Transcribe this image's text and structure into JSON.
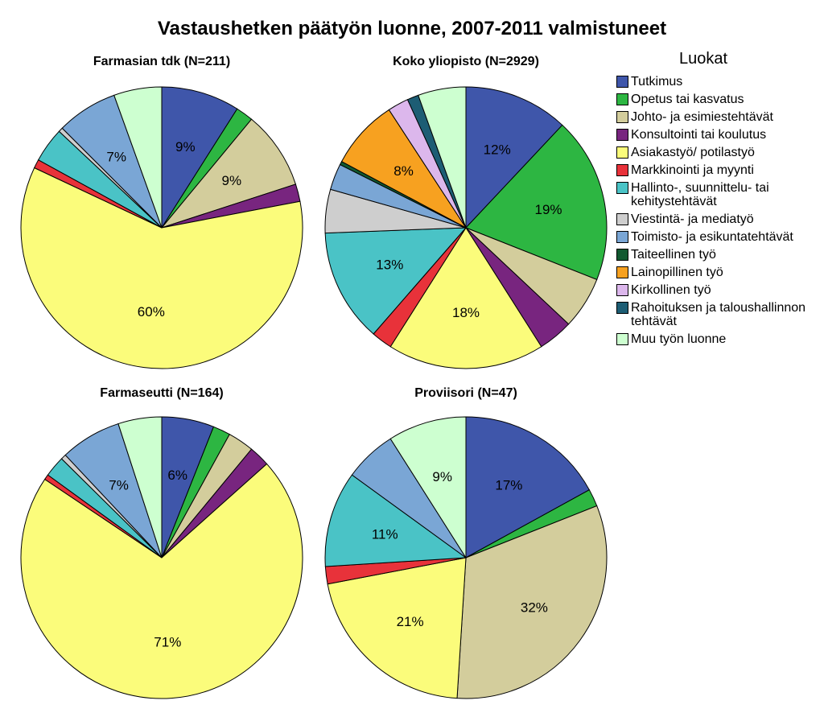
{
  "title": "Vastaushetken päätyön luonne, 2007-2011 valmistuneet",
  "legend_title": "Luokat",
  "categories": [
    {
      "label": "Tutkimus",
      "color": "#3f56aa"
    },
    {
      "label": "Opetus tai kasvatus",
      "color": "#2db642"
    },
    {
      "label": "Johto- ja esimiestehtävät",
      "color": "#d3cd9c"
    },
    {
      "label": "Konsultointi tai koulutus",
      "color": "#78257f"
    },
    {
      "label": "Asiakastyö/ potilastyö",
      "color": "#fbfc7b"
    },
    {
      "label": "Markkinointi ja myynti",
      "color": "#e8323a"
    },
    {
      "label": "Hallinto-, suunnittelu- tai kehitystehtävät",
      "color": "#4ac3c6"
    },
    {
      "label": "Viestintä- ja mediatyö",
      "color": "#cecece"
    },
    {
      "label": "Toimisto- ja esikuntatehtävät",
      "color": "#7aa6d5"
    },
    {
      "label": "Taiteellinen työ",
      "color": "#125930"
    },
    {
      "label": "Lainopillinen työ",
      "color": "#f7a120"
    },
    {
      "label": "Kirkollinen työ",
      "color": "#dcb7ec"
    },
    {
      "label": "Rahoituksen ja taloushallinnon tehtävät",
      "color": "#1d5d74"
    },
    {
      "label": "Muu työn luonne",
      "color": "#cdffd0"
    }
  ],
  "chart_data": [
    {
      "type": "pie",
      "title": "Farmasian tdk (N=211)",
      "values": [
        9,
        2,
        9,
        2,
        60,
        1,
        4,
        0.5,
        7,
        0,
        0,
        0,
        0,
        5.5
      ],
      "data_labels": [
        "9%",
        "",
        "9%",
        "",
        "60%",
        "",
        "",
        "",
        "7%",
        "",
        "",
        "",
        "",
        ""
      ]
    },
    {
      "type": "pie",
      "title": "Koko yliopisto (N=2929)",
      "values": [
        12,
        19,
        6,
        4,
        18,
        2.4,
        13,
        5,
        3,
        0.4,
        8,
        2.4,
        1.3,
        5.5
      ],
      "data_labels": [
        "12%",
        "19%",
        "",
        "",
        "18%",
        "",
        "13%",
        "",
        "",
        "",
        "8%",
        "",
        "",
        ""
      ]
    },
    {
      "type": "pie",
      "title": "Farmaseutti (N=164)",
      "values": [
        6,
        2,
        3,
        2.4,
        71,
        0.6,
        2.4,
        0.6,
        7,
        0,
        0,
        0,
        0,
        5
      ],
      "data_labels": [
        "6%",
        "",
        "",
        "",
        "71%",
        "",
        "",
        "",
        "7%",
        "",
        "",
        "",
        "",
        ""
      ]
    },
    {
      "type": "pie",
      "title": "Proviisori (N=47)",
      "values": [
        17,
        2,
        32,
        0,
        21,
        2,
        11,
        0,
        6,
        0,
        0,
        0,
        0,
        9
      ],
      "data_labels": [
        "17%",
        "",
        "32%",
        "",
        "21%",
        "",
        "11%",
        "",
        "",
        "",
        "",
        "",
        "",
        "9%"
      ]
    }
  ]
}
